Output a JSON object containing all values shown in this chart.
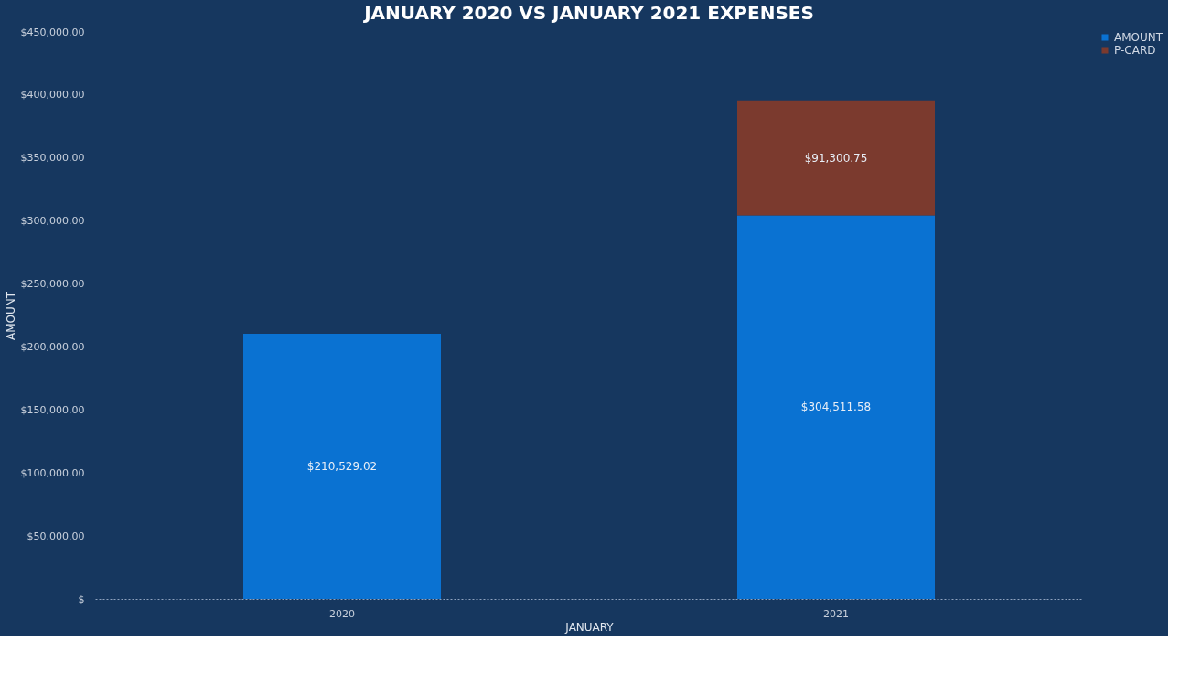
{
  "chart_data": {
    "type": "bar",
    "title": "JANUARY 2020 VS JANUARY 2021 EXPENSES",
    "xlabel": "JANUARY",
    "ylabel": "AMOUNT",
    "categories": [
      "2020",
      "2021"
    ],
    "stacked": true,
    "series": [
      {
        "name": "AMOUNT",
        "color": "#0a72d2",
        "values": [
          210529.02,
          304511.58
        ],
        "value_labels": [
          "$210,529.02",
          "$304,511.58"
        ]
      },
      {
        "name": "P-CARD",
        "color": "#7b3a2e",
        "values": [
          null,
          91300.75
        ],
        "value_labels": [
          null,
          "$91,300.75"
        ]
      }
    ],
    "ylim": [
      0,
      450000
    ],
    "yticks": [
      {
        "value": 0,
        "label": "$"
      },
      {
        "value": 50000,
        "label": "$50,000.00"
      },
      {
        "value": 100000,
        "label": "$100,000.00"
      },
      {
        "value": 150000,
        "label": "$150,000.00"
      },
      {
        "value": 200000,
        "label": "$200,000.00"
      },
      {
        "value": 250000,
        "label": "$250,000.00"
      },
      {
        "value": 300000,
        "label": "$300,000.00"
      },
      {
        "value": 350000,
        "label": "$350,000.00"
      },
      {
        "value": 400000,
        "label": "$400,000.00"
      },
      {
        "value": 450000,
        "label": "$450,000.00"
      }
    ],
    "grid": false,
    "legend": "right"
  }
}
